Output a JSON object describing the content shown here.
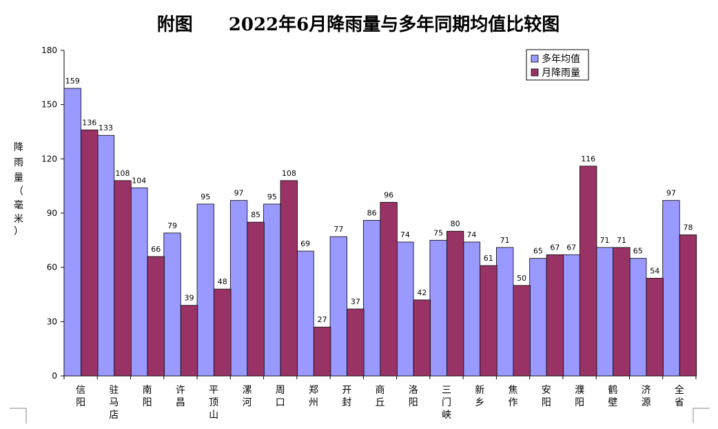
{
  "chart_data": {
    "type": "bar",
    "title": "附图　　2022年6月降雨量与多年同期均值比较图",
    "ylabel": "降雨量（毫米）",
    "ylim": [
      0,
      180
    ],
    "yticks": [
      0,
      30,
      60,
      90,
      120,
      150,
      180
    ],
    "grid": false,
    "legend_position": "top-right",
    "categories": [
      "信阳",
      "驻马店",
      "南阳",
      "许昌",
      "平顶山",
      "漯河",
      "周口",
      "郑州",
      "开封",
      "商丘",
      "洛阳",
      "三门峡",
      "新乡",
      "焦作",
      "安阳",
      "濮阳",
      "鹤壁",
      "济源",
      "全省"
    ],
    "series": [
      {
        "name": "多年均值",
        "color": "#9999ff",
        "values": [
          159,
          133,
          104,
          79,
          95,
          97,
          95,
          69,
          77,
          86,
          74,
          75,
          74,
          71,
          65,
          67,
          71,
          65,
          97
        ]
      },
      {
        "name": "月降雨量",
        "color": "#993366",
        "values": [
          136,
          108,
          66,
          39,
          48,
          85,
          108,
          27,
          37,
          96,
          42,
          80,
          61,
          50,
          67,
          116,
          71,
          54,
          78
        ]
      }
    ]
  }
}
